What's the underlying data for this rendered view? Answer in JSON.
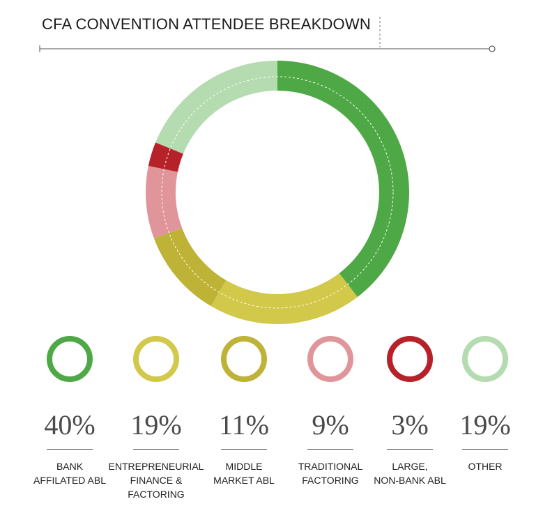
{
  "title": "CFA CONVENTION ATTENDEE BREAKDOWN",
  "chart_data": {
    "type": "pie",
    "title": "CFA CONVENTION ATTENDEE BREAKDOWN",
    "series": [
      {
        "value": 40,
        "percent_label": "40%",
        "label_lines": [
          "BANK",
          "AFFILATED ABL"
        ],
        "color": "#4ea845"
      },
      {
        "value": 19,
        "percent_label": "19%",
        "label_lines": [
          "ENTREPRENEURIAL",
          "FINANCE &",
          "FACTORING"
        ],
        "color": "#d2c84a"
      },
      {
        "value": 11,
        "percent_label": "11%",
        "label_lines": [
          "MIDDLE",
          "MARKET ABL"
        ],
        "color": "#beb336"
      },
      {
        "value": 9,
        "percent_label": "9%",
        "label_lines": [
          "TRADITIONAL",
          "FACTORING"
        ],
        "color": "#e0959a"
      },
      {
        "value": 3,
        "percent_label": "3%",
        "label_lines": [
          "LARGE,",
          "NON-BANK ABL"
        ],
        "color": "#b7222a"
      },
      {
        "value": 19,
        "percent_label": "19%",
        "label_lines": [
          "OTHER"
        ],
        "color": "#b5dbb1"
      }
    ]
  }
}
